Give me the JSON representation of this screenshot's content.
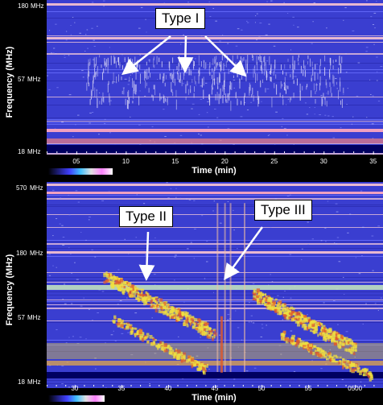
{
  "chart_data": [
    {
      "type": "heatmap",
      "ylabel": "Frequency (MHz)",
      "xlabel": "Time (min)",
      "y_ticks": [
        "180",
        "57",
        "18"
      ],
      "y_tick_unit": "MHz",
      "x_ticks": [
        "05",
        "10",
        "15",
        "20",
        "25",
        "30",
        "35"
      ],
      "x_range": [
        2,
        36
      ],
      "y_scale": "log",
      "y_range": [
        18,
        180
      ],
      "annotations": [
        {
          "text": "Type I",
          "points_to_time": [
            9.5,
            15,
            21.5
          ],
          "points_to_freq": 60
        }
      ],
      "colors": {
        "background": "#3a3ed0",
        "burst": "#d9d6f5"
      }
    },
    {
      "type": "heatmap",
      "ylabel": "Frequency (MHz)",
      "xlabel": "Time (min)",
      "y_ticks": [
        "570",
        "180",
        "57",
        "18"
      ],
      "y_tick_unit": "MHz",
      "x_ticks": [
        "30",
        "35",
        "40",
        "45",
        "50",
        "55",
        "0500"
      ],
      "x_range": [
        27,
        63
      ],
      "y_scale": "log",
      "y_range": [
        18,
        570
      ],
      "annotations": [
        {
          "text": "Type II",
          "points_to_time": 37.5,
          "points_to_freq": 115
        },
        {
          "text": "Type III",
          "points_to_time": 45.5,
          "points_to_freq": 115
        }
      ],
      "colors": {
        "background": "#3a3ed0",
        "burst": "#f0e040",
        "burst_hot": "#e05a2a"
      }
    }
  ]
}
